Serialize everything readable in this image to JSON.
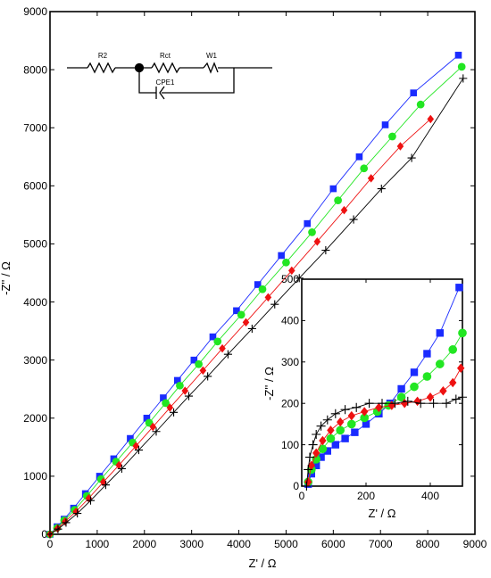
{
  "chart_data": [
    {
      "type": "scatter",
      "xlabel": "Z' / Ω",
      "ylabel": "-Z'' / Ω",
      "xlim": [
        0,
        9000
      ],
      "ylim": [
        0,
        9000
      ],
      "xticks": [
        "0",
        "1000",
        "2000",
        "3000",
        "4000",
        "5000",
        "6000",
        "7000",
        "8000",
        "9000"
      ],
      "yticks": [
        "0",
        "1000",
        "2000",
        "3000",
        "4000",
        "5000",
        "6000",
        "7000",
        "8000",
        "9000"
      ],
      "series": [
        {
          "marker": "square",
          "color": "#1a2bff",
          "x": [
            0,
            150,
            300,
            500,
            750,
            1050,
            1350,
            1700,
            2050,
            2400,
            2700,
            3050,
            3450,
            3950,
            4400,
            4900,
            5450,
            6000,
            6550,
            7100,
            7700,
            8650
          ],
          "y": [
            0,
            130,
            260,
            450,
            700,
            1000,
            1300,
            1650,
            2000,
            2350,
            2650,
            3000,
            3400,
            3850,
            4300,
            4800,
            5350,
            5950,
            6500,
            7050,
            7600,
            8250
          ]
        },
        {
          "marker": "circle",
          "color": "#22e622",
          "x": [
            0,
            150,
            300,
            520,
            780,
            1080,
            1400,
            1750,
            2100,
            2450,
            2750,
            3150,
            3550,
            4050,
            4500,
            5000,
            5550,
            6100,
            6650,
            7250,
            7850,
            8720
          ],
          "y": [
            0,
            110,
            240,
            420,
            660,
            950,
            1250,
            1580,
            1920,
            2260,
            2560,
            2930,
            3320,
            3780,
            4220,
            4680,
            5200,
            5750,
            6300,
            6850,
            7400,
            8050
          ]
        },
        {
          "marker": "diamond",
          "color": "#ee1111",
          "x": [
            0,
            160,
            320,
            550,
            820,
            1130,
            1460,
            1820,
            2180,
            2540,
            2860,
            3240,
            3650,
            4150,
            4620,
            5120,
            5660,
            6230,
            6800,
            7420,
            8060
          ],
          "y": [
            0,
            100,
            220,
            390,
            620,
            900,
            1190,
            1520,
            1850,
            2180,
            2470,
            2820,
            3200,
            3650,
            4080,
            4540,
            5040,
            5580,
            6130,
            6680,
            7150
          ]
        },
        {
          "marker": "plus",
          "color": "#000000",
          "x": [
            0,
            170,
            340,
            580,
            860,
            1180,
            1520,
            1880,
            2250,
            2620,
            2940,
            3340,
            3770,
            4280,
            4760,
            5280,
            5840,
            6430,
            7020,
            7660,
            8750
          ],
          "y": [
            0,
            90,
            200,
            360,
            580,
            850,
            1130,
            1450,
            1770,
            2100,
            2380,
            2720,
            3100,
            3540,
            3960,
            4410,
            4890,
            5420,
            5950,
            6480,
            7850
          ]
        }
      ]
    },
    {
      "type": "scatter",
      "xlabel": "Z' / Ω",
      "ylabel": "-Z'' / Ω",
      "xlim": [
        0,
        500
      ],
      "ylim": [
        0,
        500
      ],
      "xticks": [
        "0",
        "200",
        "400"
      ],
      "yticks": [
        "0",
        "100",
        "200",
        "300",
        "400",
        "500"
      ],
      "series": [
        {
          "marker": "square",
          "color": "#1a2bff",
          "x": [
            20,
            30,
            45,
            60,
            80,
            105,
            135,
            165,
            200,
            240,
            275,
            310,
            350,
            390,
            430,
            490
          ],
          "y": [
            5,
            30,
            50,
            70,
            85,
            100,
            115,
            130,
            150,
            175,
            200,
            235,
            275,
            320,
            370,
            480
          ]
        },
        {
          "marker": "circle",
          "color": "#22e622",
          "x": [
            20,
            30,
            45,
            65,
            90,
            120,
            155,
            195,
            235,
            270,
            310,
            350,
            390,
            430,
            470,
            500
          ],
          "y": [
            10,
            40,
            65,
            90,
            115,
            135,
            150,
            165,
            180,
            195,
            215,
            240,
            265,
            295,
            330,
            370
          ]
        },
        {
          "marker": "diamond",
          "color": "#ee1111",
          "x": [
            20,
            30,
            45,
            65,
            90,
            120,
            155,
            195,
            240,
            280,
            320,
            360,
            400,
            440,
            470,
            495
          ],
          "y": [
            10,
            50,
            80,
            110,
            135,
            155,
            170,
            180,
            190,
            195,
            200,
            205,
            215,
            230,
            250,
            285
          ]
        },
        {
          "marker": "plus",
          "color": "#000000",
          "x": [
            15,
            20,
            25,
            35,
            45,
            60,
            80,
            105,
            135,
            170,
            210,
            250,
            290,
            330,
            370,
            410,
            450,
            480,
            500
          ],
          "y": [
            0,
            40,
            70,
            100,
            125,
            145,
            160,
            175,
            185,
            190,
            200,
            200,
            200,
            205,
            200,
            200,
            200,
            210,
            215
          ]
        }
      ]
    }
  ],
  "circuit": {
    "r2": "R2",
    "rct": "Rct",
    "w1": "W1",
    "cpe1": "CPE1"
  }
}
